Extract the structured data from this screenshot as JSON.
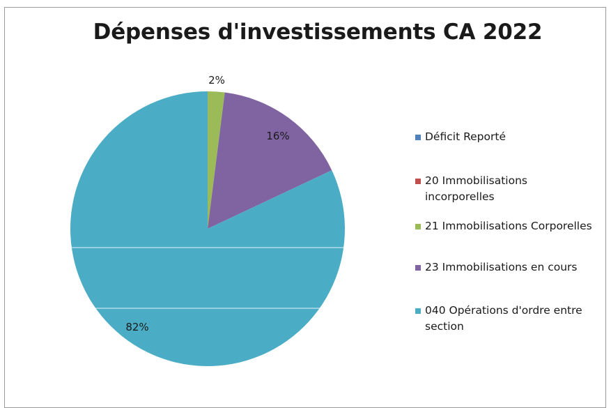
{
  "chart_data": {
    "type": "pie",
    "title": "Dépenses d'investissements CA 2022",
    "legend_position": "right",
    "slices": [
      {
        "label": "Déficit Reporté",
        "value": 0,
        "color": "#4f81bd",
        "data_label": ""
      },
      {
        "label": "20 Immobilisations incorporelles",
        "value": 0,
        "color": "#c0504d",
        "data_label": ""
      },
      {
        "label": "21 Immobilisations Corporelles",
        "value": 2,
        "color": "#9bbb59",
        "data_label": "2%"
      },
      {
        "label": "23 Immobilisations en cours",
        "value": 16,
        "color": "#8064a2",
        "data_label": "16%"
      },
      {
        "label": "040 Opérations d'ordre entre section",
        "value": 82,
        "color": "#4bacc6",
        "data_label": "82%"
      }
    ]
  },
  "legend": {
    "items": [
      {
        "line1": "Déficit Reporté",
        "line2": "",
        "color": "#4f81bd"
      },
      {
        "line1": "20 Immobilisations",
        "line2": "incorporelles",
        "color": "#c0504d"
      },
      {
        "line1": "21 Immobilisations Corporelles",
        "line2": "",
        "color": "#9bbb59"
      },
      {
        "line1": "23 Immobilisations en cours",
        "line2": "",
        "color": "#8064a2"
      },
      {
        "line1": "040 Opérations d'ordre entre",
        "line2": "section",
        "color": "#4bacc6"
      }
    ]
  }
}
